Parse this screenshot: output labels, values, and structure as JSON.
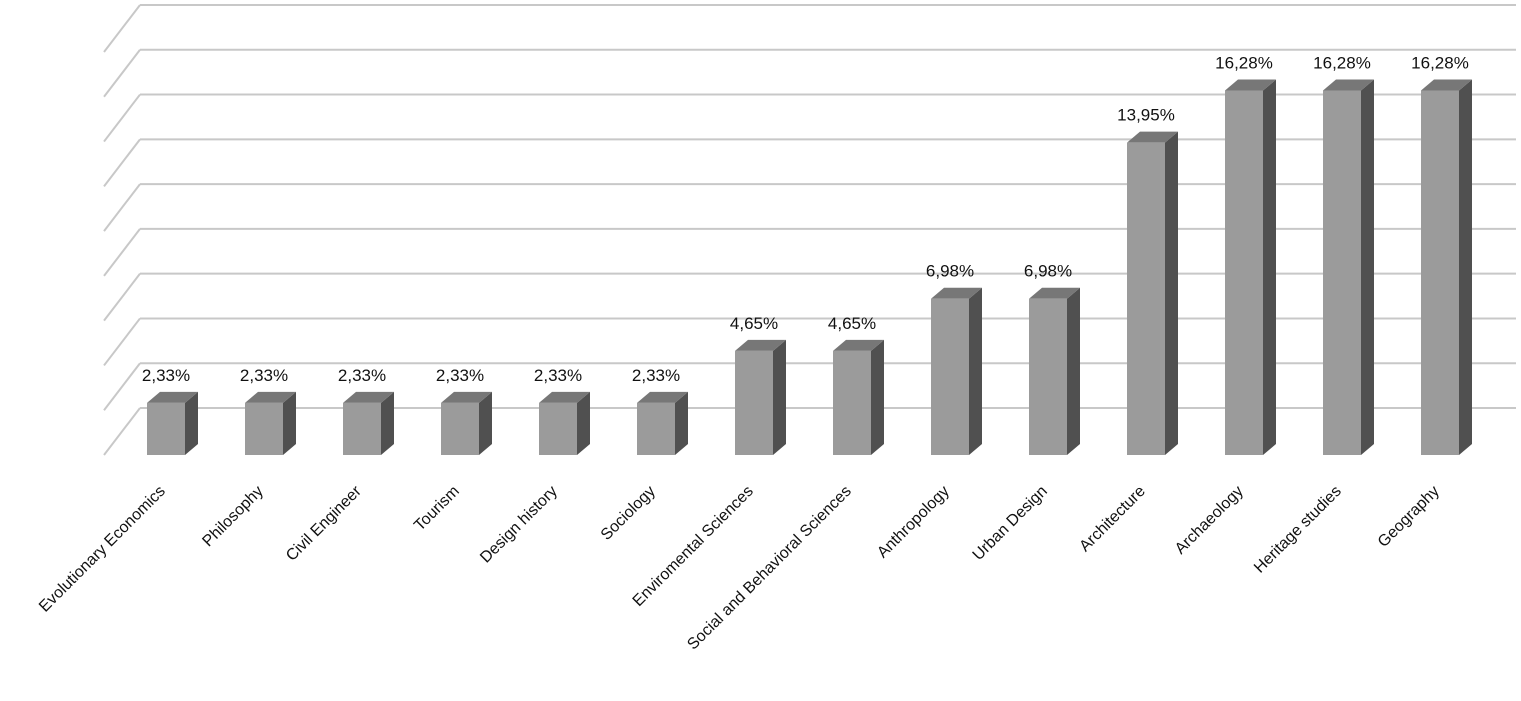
{
  "chart_data": {
    "type": "bar",
    "title": "",
    "xlabel": "",
    "ylabel": "",
    "style": "3d-column",
    "grid": true,
    "legend": "none",
    "ylim": [
      0,
      18
    ],
    "categories": [
      "Evolutionary Economics",
      "Philosophy",
      "Civil Engineer",
      "Tourism",
      "Design history",
      "Sociology",
      "Enviromental Sciences",
      "Social and Behavioral Sciences",
      "Anthropology",
      "Urban Design",
      "Architecture",
      "Archaeology",
      "Heritage studies",
      "Geography"
    ],
    "values": [
      2.33,
      2.33,
      2.33,
      2.33,
      2.33,
      2.33,
      4.65,
      4.65,
      6.98,
      6.98,
      13.95,
      16.28,
      16.28,
      16.28
    ],
    "value_labels": [
      "2,33%",
      "2,33%",
      "2,33%",
      "2,33%",
      "2,33%",
      "2,33%",
      "4,65%",
      "4,65%",
      "6,98%",
      "6,98%",
      "13,95%",
      "16,28%",
      "16,28%",
      "16,28%"
    ],
    "colors": {
      "bar_front": "#9b9b9b",
      "bar_side": "#505050",
      "bar_top": "#777777",
      "grid": "#c8c8c8"
    }
  }
}
